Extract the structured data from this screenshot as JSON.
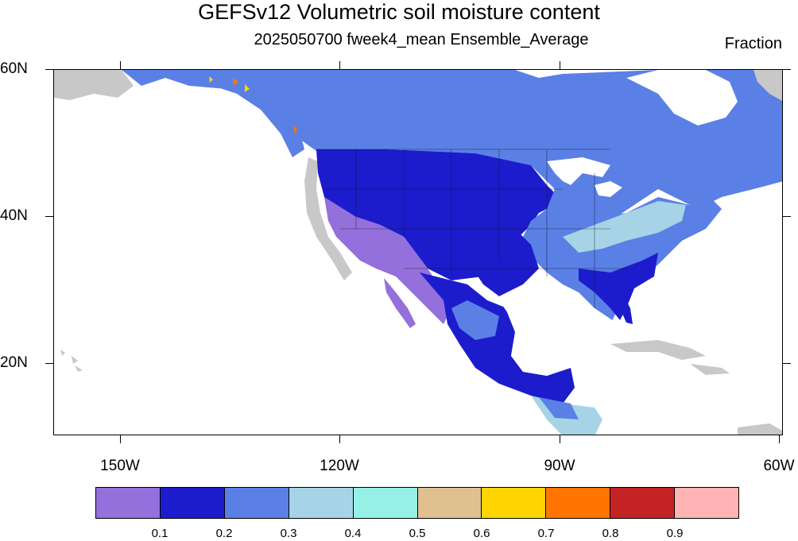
{
  "title": "GEFSv12 Volumetric soil moisture content",
  "subtitle": "2025050700 fweek4_mean Ensemble_Average",
  "units": "Fraction",
  "map": {
    "region": "North America",
    "lat_range": [
      10,
      60
    ],
    "lon_range": [
      -160,
      -60
    ],
    "lat_labels": [
      "60N",
      "40N",
      "20N"
    ],
    "lon_labels": [
      "150W",
      "120W",
      "90W",
      "60W"
    ],
    "land_no_data_color": "#c8c8c8",
    "ocean_color": "#ffffff"
  },
  "colorbar": {
    "colors": [
      "#9370db",
      "#1c1ccd",
      "#5a80e6",
      "#a6d4e6",
      "#96f0e6",
      "#e0bf91",
      "#ffd500",
      "#ff7500",
      "#c42323",
      "#ffb3b3"
    ],
    "labels": [
      "0.1",
      "0.2",
      "0.3",
      "0.4",
      "0.5",
      "0.6",
      "0.7",
      "0.8",
      "0.9"
    ]
  }
}
